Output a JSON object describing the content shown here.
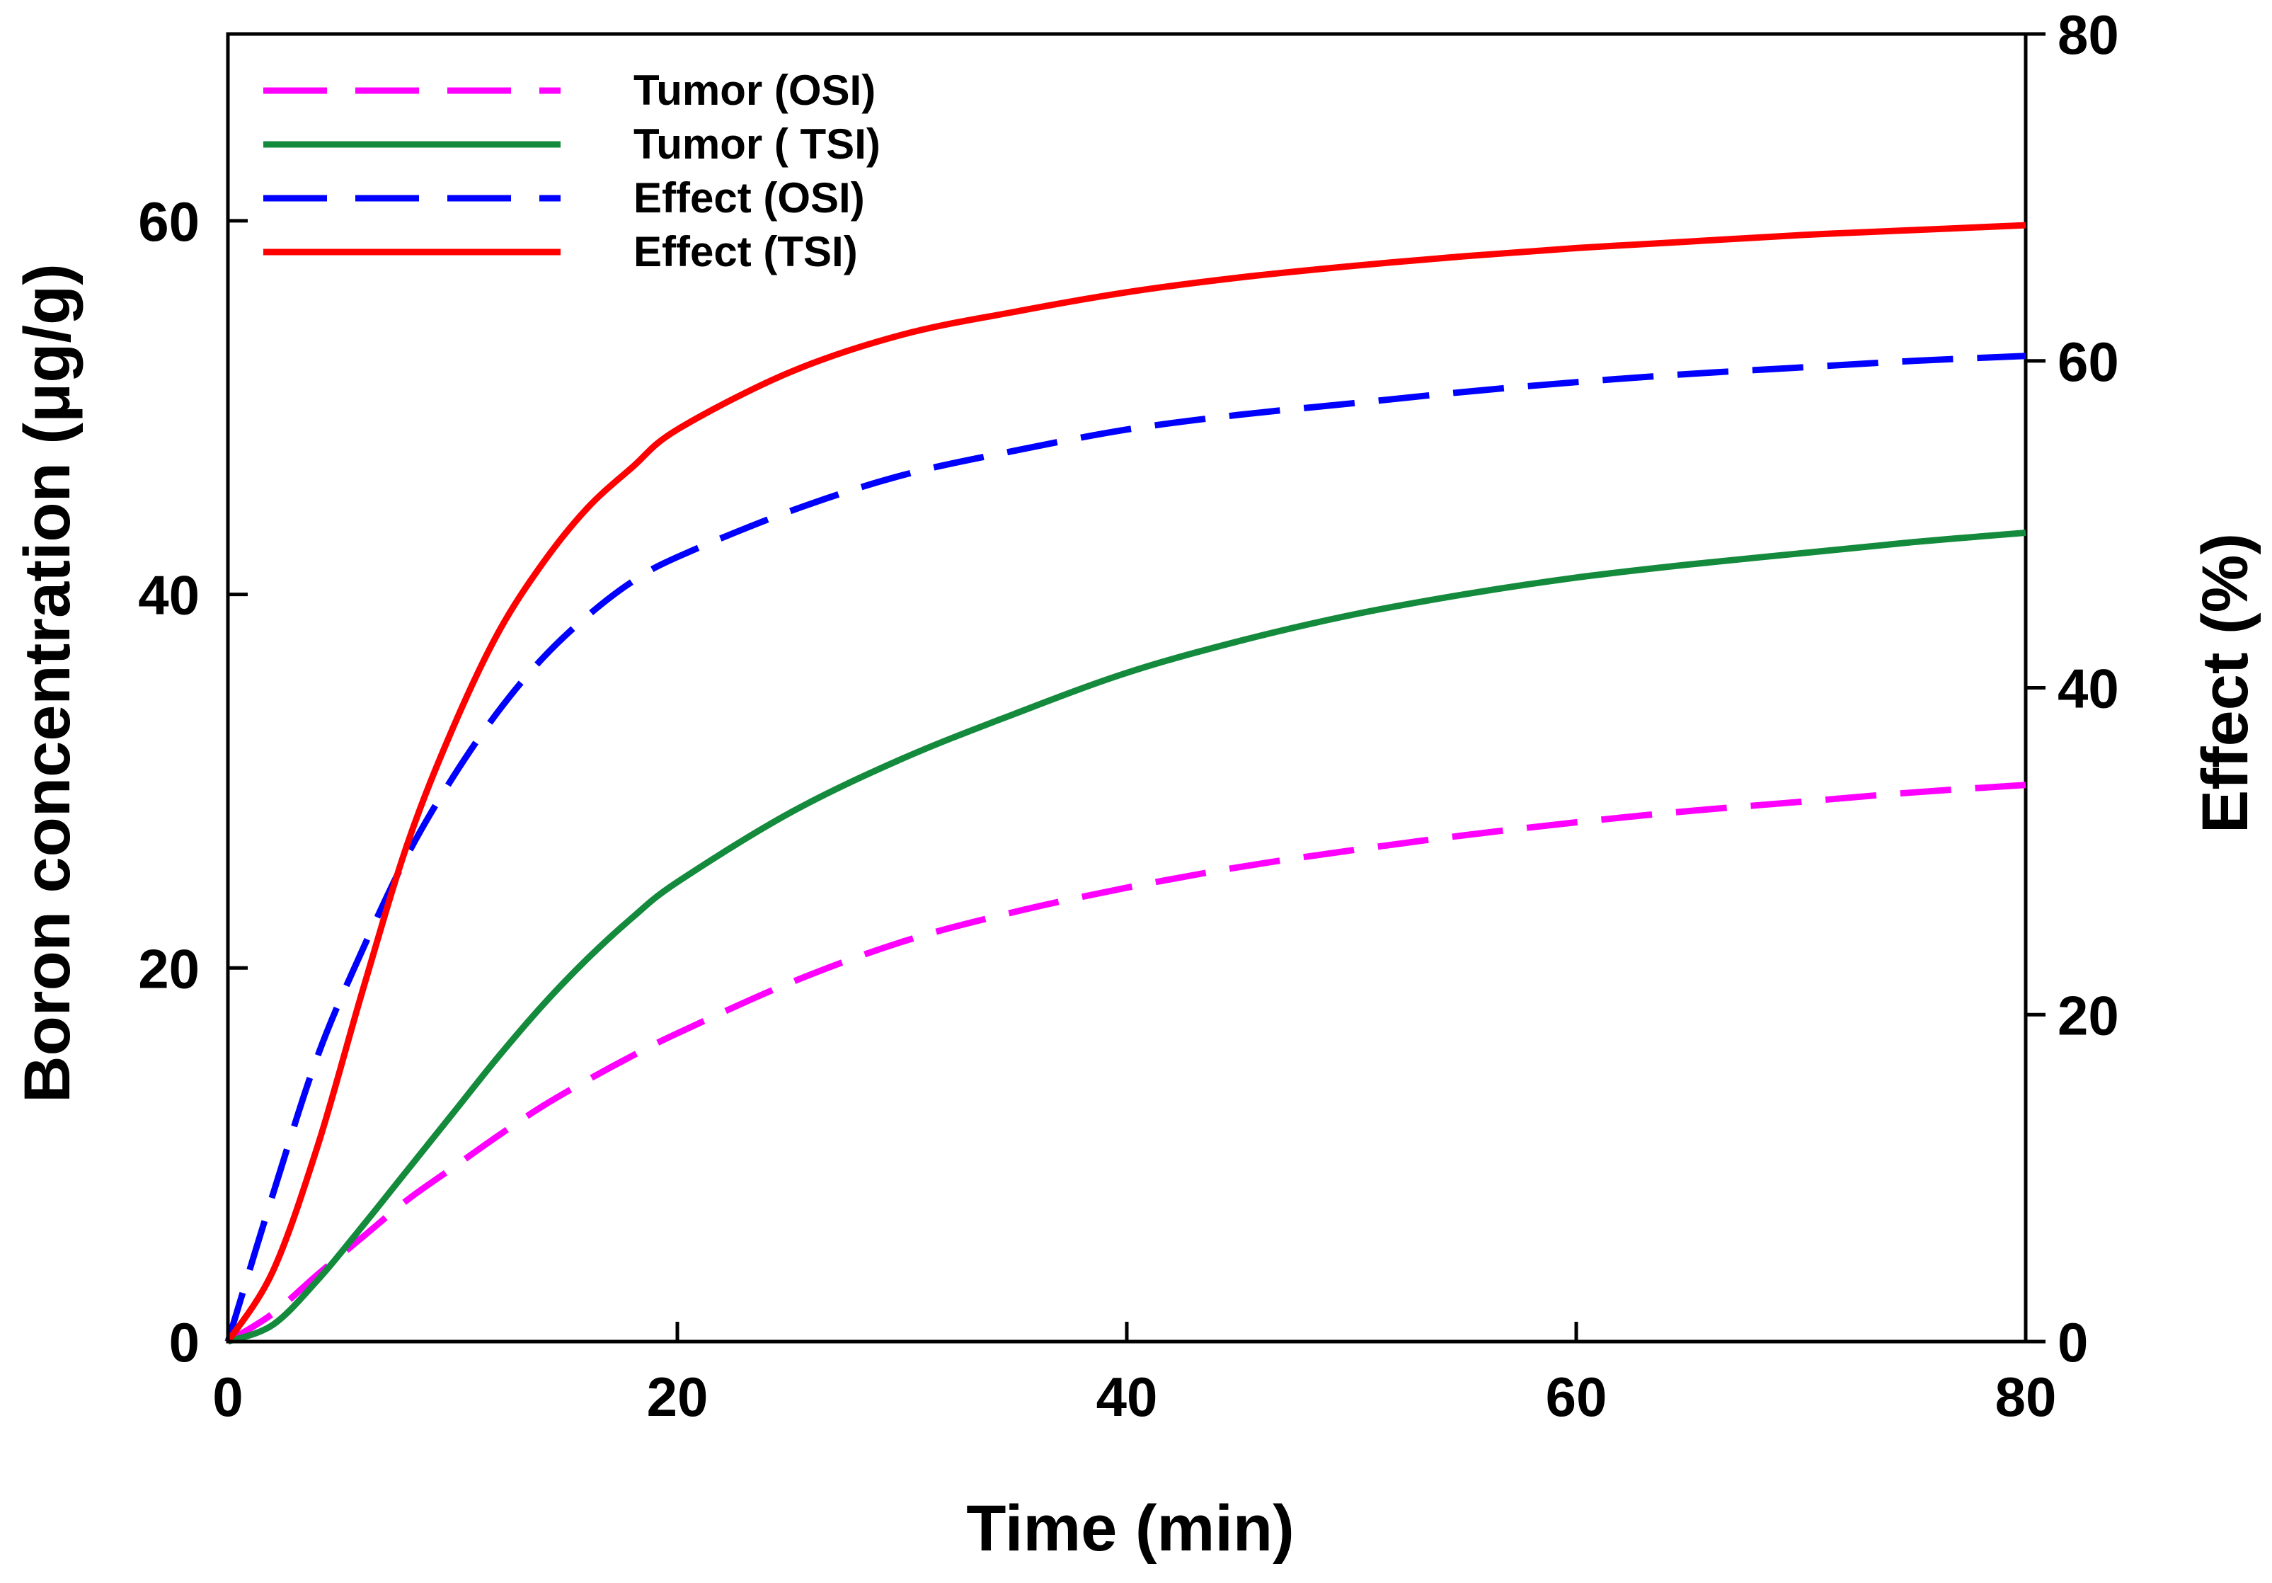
{
  "chart_data": {
    "type": "line",
    "xlabel": "Time (min)",
    "ylabel": "Boron concentration (μg/g)",
    "y2label": "Effect (%)",
    "xlim": [
      0,
      80
    ],
    "ylim": [
      0,
      70
    ],
    "y2lim": [
      0,
      80
    ],
    "x_ticks": [
      "0",
      "20",
      "40",
      "60",
      "80"
    ],
    "y_ticks": [
      "0",
      "20",
      "40",
      "60"
    ],
    "y2_ticks": [
      "0",
      "20",
      "40",
      "60",
      "80"
    ],
    "grid": false,
    "legend_position": "top-left",
    "x": [
      0,
      2,
      4,
      6,
      8,
      10,
      12,
      14,
      16,
      18,
      20,
      25,
      30,
      35,
      40,
      45,
      50,
      55,
      60,
      65,
      70,
      75,
      80
    ],
    "series": [
      {
        "name": "Tumor (OSI)",
        "axis": "left",
        "style": "dashed",
        "color": "#ff00ff",
        "values": [
          0,
          1.5,
          3.6,
          5.6,
          7.6,
          9.3,
          11.0,
          12.6,
          14.0,
          15.3,
          16.5,
          19.2,
          21.4,
          23.0,
          24.3,
          25.4,
          26.3,
          27.1,
          27.8,
          28.4,
          28.9,
          29.4,
          29.8
        ]
      },
      {
        "name": "Tumor ( TSI)",
        "axis": "left",
        "style": "solid",
        "color": "#138a3c",
        "values": [
          0,
          0.9,
          3.3,
          6.2,
          9.2,
          12.2,
          15.2,
          18.0,
          20.5,
          22.7,
          24.6,
          28.3,
          31.2,
          33.6,
          35.8,
          37.5,
          38.9,
          40.0,
          40.9,
          41.6,
          42.2,
          42.8,
          43.3
        ]
      },
      {
        "name": "Effect (OSI)",
        "axis": "right",
        "style": "dashed",
        "color": "#0000ff",
        "values": [
          0,
          9.0,
          17.5,
          24.0,
          29.8,
          34.5,
          38.5,
          41.8,
          44.4,
          46.5,
          48.0,
          50.8,
          53.0,
          54.5,
          55.8,
          56.7,
          57.4,
          58.1,
          58.7,
          59.2,
          59.6,
          60.0,
          60.3
        ]
      },
      {
        "name": "Effect (TSI)",
        "axis": "right",
        "style": "solid",
        "color": "#ff0000",
        "values": [
          0,
          4.3,
          12.0,
          21.5,
          30.5,
          37.5,
          43.3,
          47.6,
          51.0,
          53.5,
          55.8,
          59.3,
          61.6,
          63.0,
          64.2,
          65.1,
          65.8,
          66.4,
          66.9,
          67.3,
          67.7,
          68.0,
          68.3
        ]
      }
    ]
  }
}
